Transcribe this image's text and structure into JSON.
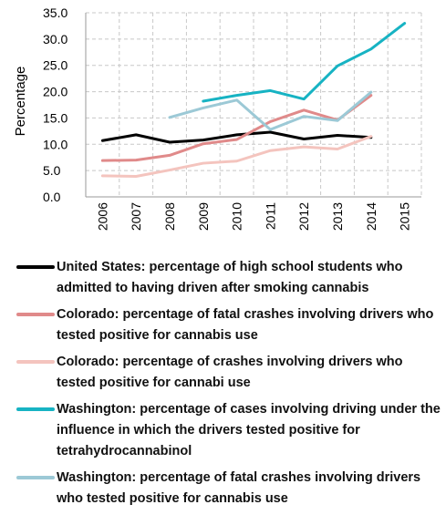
{
  "chart_data": {
    "type": "line",
    "title": "",
    "xlabel": "",
    "ylabel": "Percentage",
    "categories": [
      "2006",
      "2007",
      "2008",
      "2009",
      "2010",
      "2011",
      "2012",
      "2013",
      "2014",
      "2015"
    ],
    "ylim": [
      0,
      35
    ],
    "yticks": [
      "0.0",
      "5.0",
      "10.0",
      "15.0",
      "20.0",
      "25.0",
      "30.0",
      "35.0"
    ],
    "grid": "dashed",
    "legend_position": "bottom",
    "series": [
      {
        "name": "United States: percentage of high school students who admitted to having driven after smoking cannabis",
        "color": "#000000",
        "values": [
          10.7,
          11.8,
          10.4,
          10.8,
          11.8,
          12.3,
          11.0,
          11.7,
          11.3,
          null
        ]
      },
      {
        "name": "Colorado: percentage of fatal crashes involving drivers who tested positive for cannabis use",
        "color": "#e08a8a",
        "values": [
          6.9,
          7.0,
          7.9,
          10.1,
          10.9,
          14.3,
          16.5,
          14.6,
          19.3,
          null
        ]
      },
      {
        "name": "Colorado: percentage of crashes involving drivers who tested positive for cannabi use",
        "color": "#f4c4be",
        "values": [
          4.0,
          3.9,
          5.1,
          6.4,
          6.8,
          8.8,
          9.5,
          9.1,
          11.5,
          null
        ]
      },
      {
        "name": "Washington: percentage of cases involving driving under the influence in which the drivers tested positive for tetrahydrocannabinol",
        "color": "#17b3c3",
        "values": [
          null,
          null,
          null,
          18.2,
          19.3,
          20.2,
          18.6,
          24.9,
          28.1,
          33.0
        ]
      },
      {
        "name": "Washington: percentage of fatal crashes involving drivers who tested positive for cannabis use",
        "color": "#9cc9d6",
        "values": [
          null,
          null,
          15.1,
          16.9,
          18.4,
          12.8,
          15.3,
          14.5,
          19.9,
          null
        ]
      }
    ]
  }
}
